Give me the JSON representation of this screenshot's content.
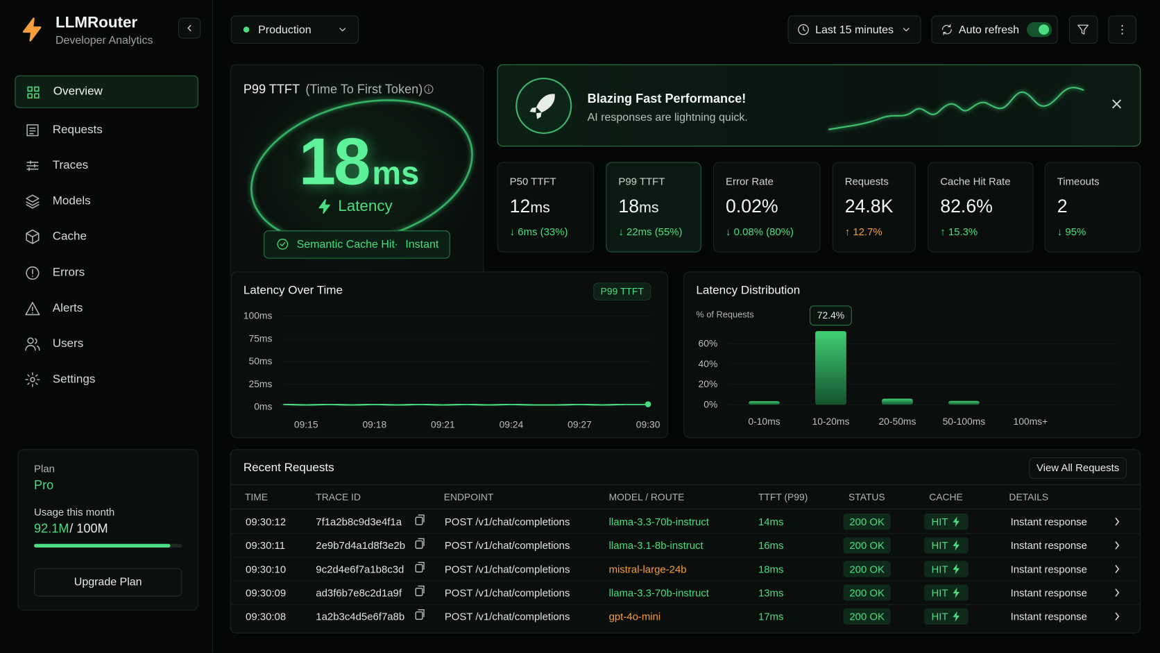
{
  "sidebar": {
    "brand": "LLMRouter",
    "subtitle": "Developer Analytics",
    "active": 0,
    "nav": [
      "Overview",
      "Requests",
      "Traces",
      "Models",
      "Cache",
      "Errors",
      "Alerts",
      "Users",
      "Settings"
    ],
    "plan": {
      "label": "Plan",
      "name": "Pro",
      "usage_label": "Usage this month",
      "used": {
        "value": 92.1,
        "label": "92.1M"
      },
      "limit": {
        "value": 100,
        "label": "/ 100M"
      },
      "button": "Upgrade Plan"
    }
  },
  "header": {
    "environment": "Production",
    "time_range": "Last 15 minutes",
    "auto_refresh": "Auto refresh",
    "auto_refresh_on": true
  },
  "hero": {
    "title": "P99 TTFT",
    "title_note": "(Time To First Token)",
    "value": "18",
    "unit": "ms",
    "caption": "Latency",
    "badge": "Semantic Cache Hit",
    "badge_separator": "·",
    "badge_suffix": "Instant"
  },
  "banner": {
    "title": "Blazing Fast Performance!",
    "subtitle": "AI responses are lightning quick."
  },
  "stats": [
    {
      "label": "P50 TTFT",
      "value": "12",
      "unit": "ms",
      "delta": "↓ 6ms (33%)",
      "delta_color": "#4ade80"
    },
    {
      "label": "P99 TTFT",
      "value": "18",
      "unit": "ms",
      "delta": "↓ 22ms (55%)",
      "delta_color": "#4ade80",
      "highlight": true
    },
    {
      "label": "Error Rate",
      "value": "0.02%",
      "delta": "↓ 0.08% (80%)",
      "delta_color": "#4ade80"
    },
    {
      "label": "Requests",
      "value": "24.8K",
      "delta": "↑ 12.7%",
      "delta_color": "#f59e3b"
    },
    {
      "label": "Cache Hit Rate",
      "value": "82.6%",
      "delta": "↑ 15.3%",
      "delta_color": "#4ade80"
    },
    {
      "label": "Timeouts",
      "value": "2",
      "delta": "↓ 95%",
      "delta_color": "#4ade80"
    }
  ],
  "latency_chart": {
    "type": "line",
    "title": "Latency Over Time",
    "badge": "P99 TTFT",
    "color": "#4ade80",
    "categories": [
      null,
      "09:15",
      null,
      null,
      "09:18",
      null,
      null,
      "09:21",
      null,
      null,
      "09:24",
      null,
      null,
      "09:27",
      null,
      null,
      "09:30"
    ],
    "values": [
      3,
      2,
      3,
      2,
      3,
      2,
      3,
      2,
      3,
      2,
      3,
      2,
      2,
      3,
      2,
      3,
      3
    ],
    "ylim": [
      0,
      100
    ],
    "yticks": [
      {
        "value": 0,
        "label": "0ms"
      },
      {
        "value": 25,
        "label": "25ms"
      },
      {
        "value": 50,
        "label": "50ms"
      },
      {
        "value": 75,
        "label": "75ms"
      },
      {
        "value": 100,
        "label": "100ms"
      }
    ]
  },
  "distribution_chart": {
    "type": "bar",
    "title": "Latency Distribution",
    "y_label": "% of Requests",
    "color": "#3fcf74",
    "categories": [
      "0-10ms",
      "10-20ms",
      "20-50ms",
      "50-100ms",
      "100ms+"
    ],
    "values": [
      3.5,
      72.4,
      6,
      3.8,
      0
    ],
    "value_labels": [
      null,
      "72.4%",
      null,
      null,
      null
    ],
    "ylim": [
      0,
      80
    ],
    "yticks": [
      {
        "value": 0,
        "label": "0%"
      },
      {
        "value": 20,
        "label": "20%"
      },
      {
        "value": 40,
        "label": "40%"
      },
      {
        "value": 60,
        "label": "60%"
      }
    ]
  },
  "table": {
    "title": "Recent Requests",
    "button": "View All Requests",
    "columns": [
      "TIME",
      "TRACE ID",
      "ENDPOINT",
      "MODEL / ROUTE",
      "TTFT (P99)",
      "STATUS",
      "CACHE",
      "DETAILS"
    ],
    "rows": [
      {
        "time": "09:30:12",
        "trace_id": "7f1a2b8c9d3e4f1a",
        "endpoint": "POST /v1/chat/completions",
        "model": "llama-3.3-70b-instruct",
        "model_color": "#4ade80",
        "ttft": "14ms",
        "status": "200 OK",
        "cache": "HIT",
        "details": "Instant response"
      },
      {
        "time": "09:30:11",
        "trace_id": "2e9b7d4a1d8f3e2b",
        "endpoint": "POST /v1/chat/completions",
        "model": "llama-3.1-8b-instruct",
        "model_color": "#4ade80",
        "ttft": "16ms",
        "status": "200 OK",
        "cache": "HIT",
        "details": "Instant response"
      },
      {
        "time": "09:30:10",
        "trace_id": "9c2d4e6f7a1b8c3d",
        "endpoint": "POST /v1/chat/completions",
        "model": "mistral-large-24b",
        "model_color": "#f59e3b",
        "ttft": "18ms",
        "status": "200 OK",
        "cache": "HIT",
        "details": "Instant response"
      },
      {
        "time": "09:30:09",
        "trace_id": "ad3f6b7e8c2d1a9f",
        "endpoint": "POST /v1/chat/completions",
        "model": "llama-3.3-70b-instruct",
        "model_color": "#4ade80",
        "ttft": "13ms",
        "status": "200 OK",
        "cache": "HIT",
        "details": "Instant response"
      },
      {
        "time": "09:30:08",
        "trace_id": "1a2b3c4d5e6f7a8b",
        "endpoint": "POST /v1/chat/completions",
        "model": "gpt-4o-mini",
        "model_color": "#f59e3b",
        "ttft": "17ms",
        "status": "200 OK",
        "cache": "HIT",
        "details": "Instant response"
      }
    ]
  }
}
